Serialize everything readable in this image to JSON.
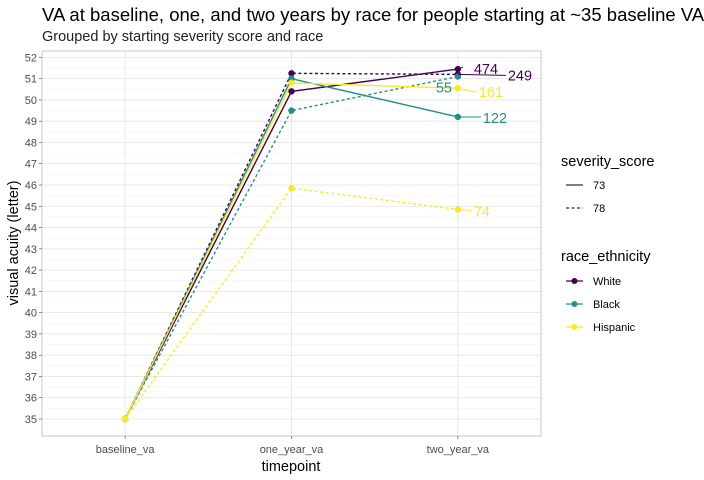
{
  "chart_data": {
    "type": "line",
    "title": "VA at baseline, one, and two years by race for people starting at ~35 baseline VA",
    "subtitle": "Grouped by starting severity score and race",
    "xlabel": "timepoint",
    "ylabel": "visual acuity (letter)",
    "categories": [
      "baseline_va",
      "one_year_va",
      "two_year_va"
    ],
    "ylim": [
      34.2,
      52.3
    ],
    "yticks": [
      35,
      36,
      37,
      38,
      39,
      40,
      41,
      42,
      43,
      44,
      45,
      46,
      47,
      48,
      49,
      50,
      51,
      52
    ],
    "grid": true,
    "legend_placement": "right",
    "colors": {
      "White": "#440154",
      "Black": "#21908C",
      "Hispanic": "#FDE725"
    },
    "series": [
      {
        "severity": "73",
        "race": "White",
        "values": [
          35,
          50.4,
          51.45
        ],
        "count_label": "474"
      },
      {
        "severity": "78",
        "race": "White",
        "values": [
          35,
          51.25,
          51.2
        ],
        "count_label": "249"
      },
      {
        "severity": "73",
        "race": "Black",
        "values": [
          35,
          51.0,
          49.2
        ],
        "count_label": "122"
      },
      {
        "severity": "78",
        "race": "Black",
        "values": [
          35,
          49.5,
          51.1
        ],
        "count_label": "55"
      },
      {
        "severity": "73",
        "race": "Hispanic",
        "values": [
          35,
          50.8,
          50.55
        ],
        "count_label": "161"
      },
      {
        "severity": "78",
        "race": "Hispanic",
        "values": [
          35,
          45.85,
          44.85
        ],
        "count_label": "74"
      }
    ],
    "legend": {
      "severity_title": "severity_score",
      "severity_items": [
        "73",
        "78"
      ],
      "race_title": "race_ethnicity",
      "race_items": [
        "White",
        "Black",
        "Hispanic"
      ]
    }
  }
}
